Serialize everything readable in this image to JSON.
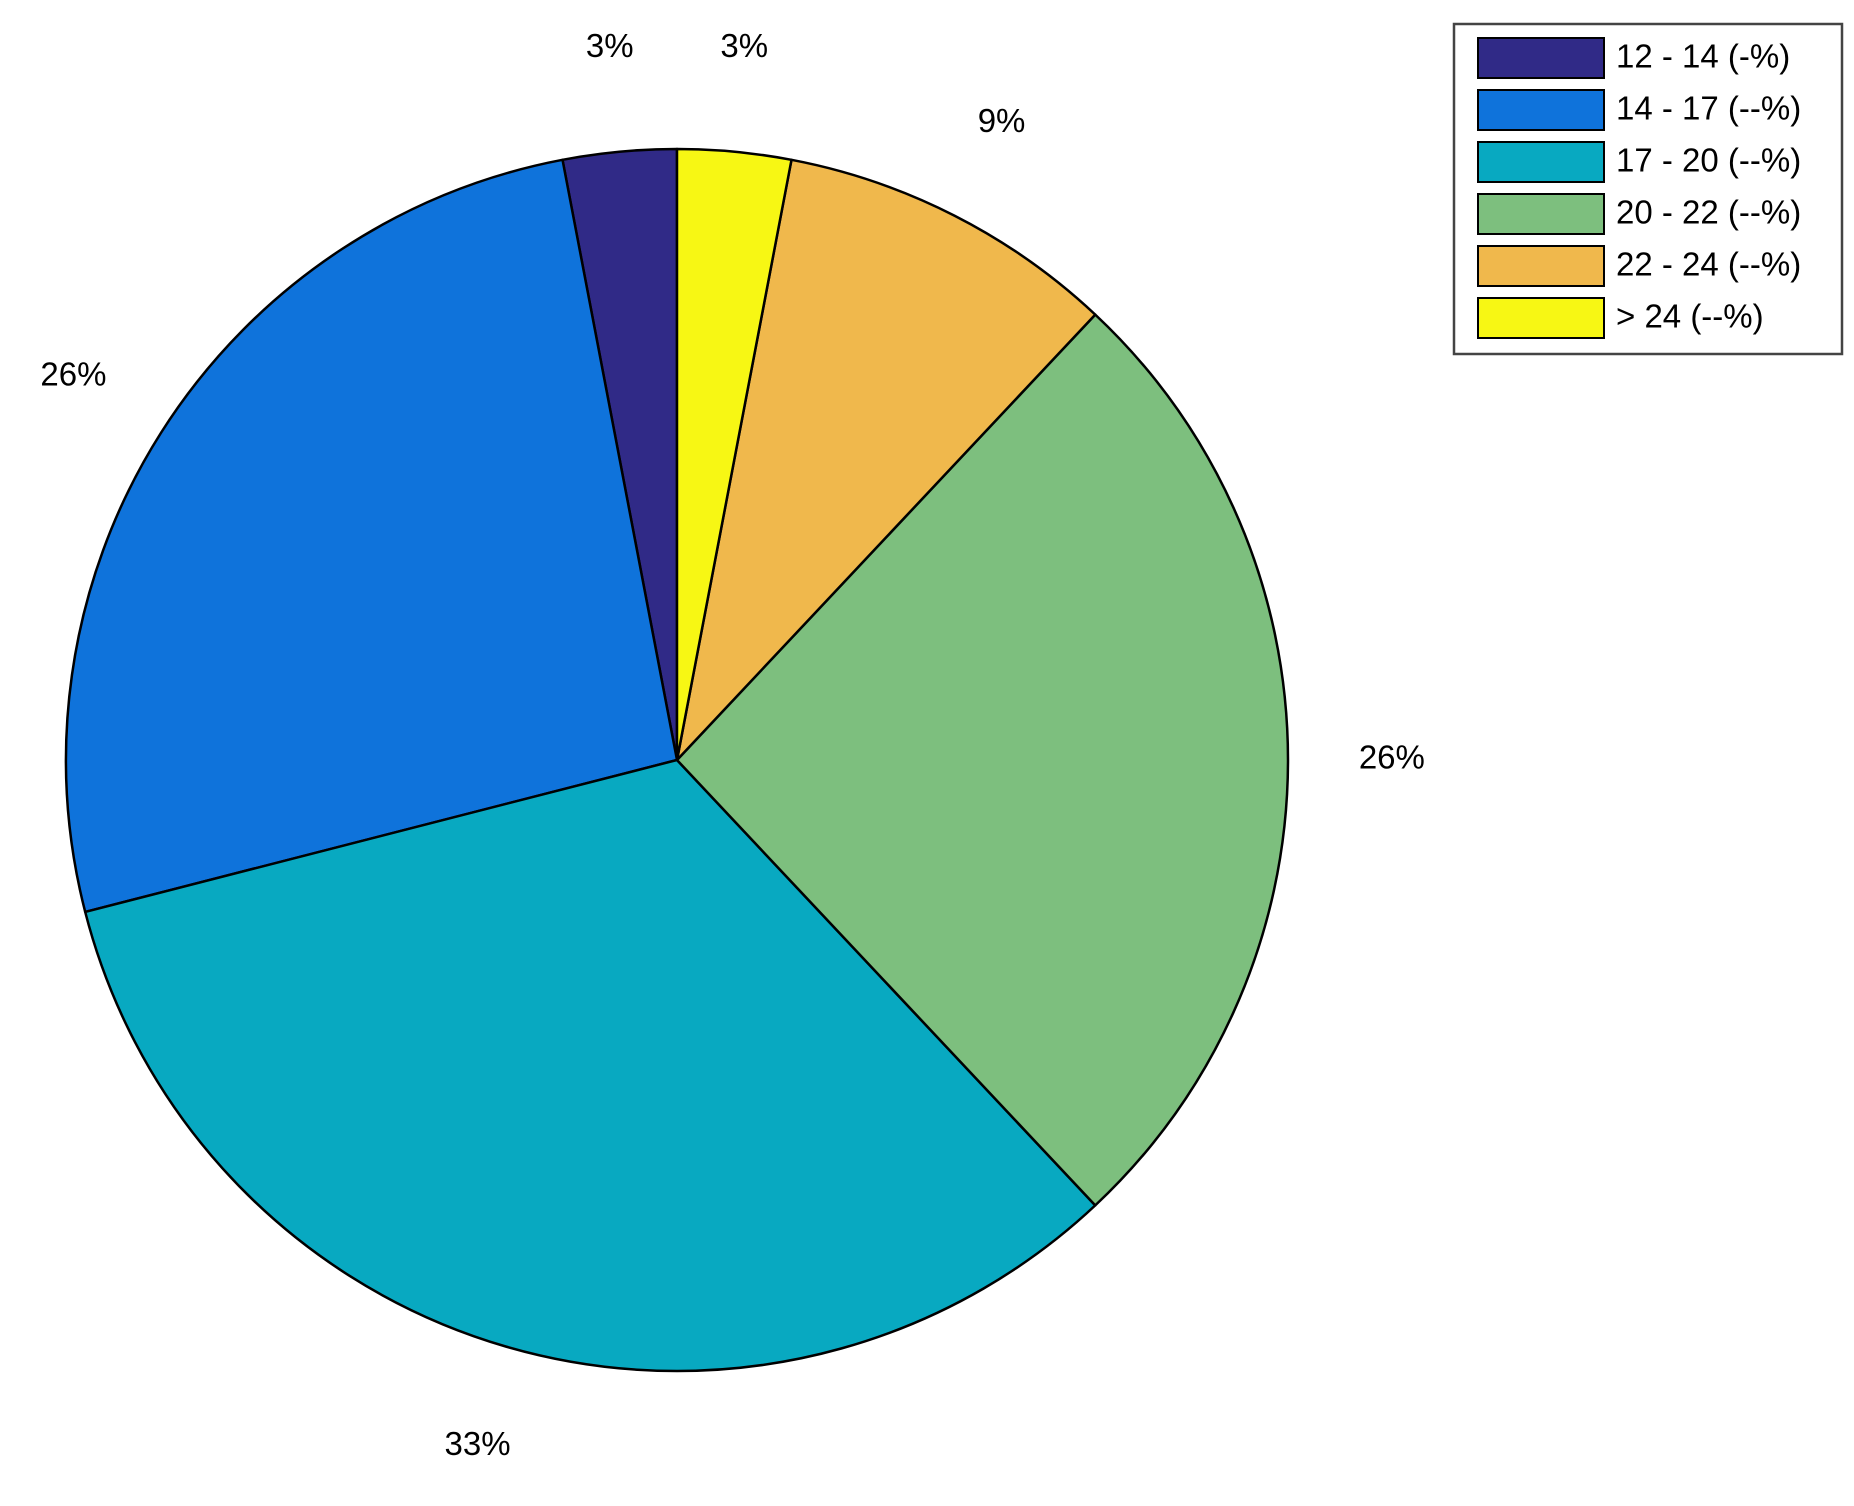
{
  "chart_data": {
    "type": "pie",
    "categories": [
      "12 - 14 (-%)",
      "14 - 17 (--%)",
      "17 - 20 (--%)",
      "20 - 22 (--%)",
      "22 - 24 (--%)",
      "> 24 (--%)"
    ],
    "values": [
      3,
      26,
      33,
      26,
      9,
      3
    ],
    "value_labels": [
      "3%",
      "26%",
      "33%",
      "26%",
      "9%",
      "3%"
    ],
    "colors": [
      "#302a87",
      "#0f73db",
      "#08a9c1",
      "#7dbf7e",
      "#f0b84c",
      "#f7f714"
    ],
    "legend": "northeast"
  }
}
